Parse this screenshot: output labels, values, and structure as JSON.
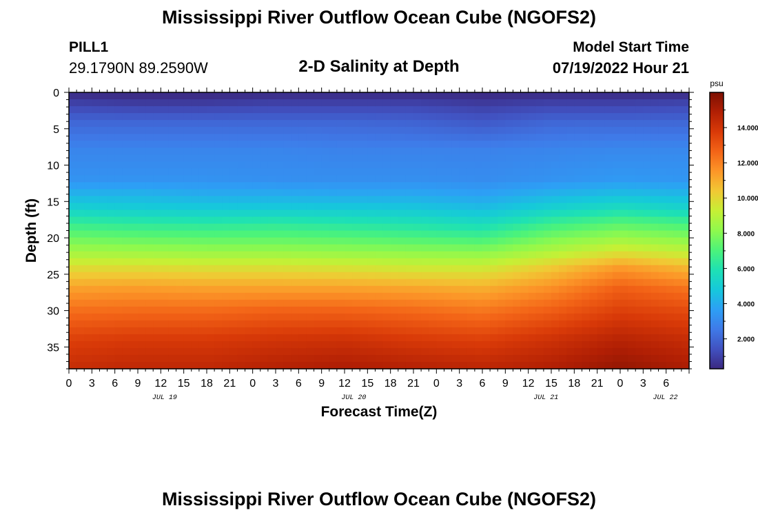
{
  "page": {
    "title": "Mississippi River Outflow Ocean Cube (NGOFS2)",
    "title_repeat": "Mississippi River Outflow Ocean Cube (NGOFS2)",
    "station": "PILL1",
    "coords": "29.1790N  89.2590W",
    "subtitle": "2-D Salinity at Depth",
    "model_start_label": "Model Start Time",
    "model_start_value": "07/19/2022 Hour 21"
  },
  "chart_data": {
    "type": "heatmap",
    "title": "2-D Salinity at Depth",
    "xlabel": "Forecast Time(Z)",
    "ylabel": "Depth (ft)",
    "units": "psu",
    "hours_total": 81,
    "x_tick_labels": [
      "0",
      "3",
      "6",
      "9",
      "12",
      "15",
      "18",
      "21",
      "0",
      "3",
      "6",
      "9",
      "12",
      "15",
      "18",
      "21",
      "0",
      "3",
      "6",
      "9",
      "12",
      "15",
      "18",
      "21",
      "0",
      "3",
      "6"
    ],
    "day_labels": [
      {
        "label": "JUL 19",
        "hour": 12.5
      },
      {
        "label": "JUL 20",
        "hour": 37.2
      },
      {
        "label": "JUL 21",
        "hour": 62.3
      },
      {
        "label": "JUL 22",
        "hour": 77.9
      }
    ],
    "y_ticks": [
      0,
      5,
      10,
      15,
      20,
      25,
      30,
      35
    ],
    "ylim": [
      0,
      38
    ],
    "colorbar": {
      "min": 0.3,
      "max": 16,
      "ticks": [
        "2.000",
        "4.000",
        "6.000",
        "8.000",
        "10.000",
        "12.000",
        "14.000"
      ],
      "tick_values": [
        2,
        4,
        6,
        8,
        10,
        12,
        14
      ],
      "colors": [
        "#3b2880",
        "#4151c0",
        "#3f7ae8",
        "#2d9ff5",
        "#16c8db",
        "#1ee1b4",
        "#4cf37a",
        "#8ff94d",
        "#c6f035",
        "#f1c834",
        "#fc9628",
        "#f36417",
        "#d93a08",
        "#b11f04",
        "#7d1002"
      ]
    },
    "profile_time_hours": [
      0,
      9,
      18,
      27,
      36,
      45,
      54,
      63,
      72,
      81
    ],
    "profile_depth_ft": [
      0,
      1,
      2,
      4,
      8,
      12,
      14,
      16,
      18,
      20,
      22,
      24,
      27,
      30,
      34,
      38
    ],
    "salinity_profiles": [
      [
        0.3,
        0.8,
        1.2,
        2.0,
        2.9,
        3.3,
        4.2,
        5.2,
        6.5,
        7.6,
        8.6,
        9.8,
        11.3,
        12.4,
        13.6,
        14.3
      ],
      [
        0.3,
        0.6,
        1.1,
        2.0,
        2.9,
        3.3,
        4.2,
        5.0,
        6.3,
        7.4,
        8.5,
        9.8,
        11.4,
        12.5,
        13.8,
        14.5
      ],
      [
        0.3,
        0.6,
        1.1,
        2.0,
        2.9,
        3.3,
        4.0,
        4.9,
        6.2,
        7.3,
        8.4,
        9.7,
        11.3,
        12.5,
        13.8,
        14.5
      ],
      [
        0.3,
        0.8,
        1.2,
        2.0,
        2.9,
        3.2,
        4.0,
        4.9,
        6.3,
        7.3,
        8.4,
        9.7,
        11.3,
        12.7,
        14.0,
        14.8
      ],
      [
        0.3,
        0.8,
        1.2,
        2.0,
        2.8,
        3.2,
        3.9,
        4.9,
        6.1,
        7.2,
        8.3,
        9.6,
        11.3,
        12.7,
        14.1,
        15.0
      ],
      [
        0.3,
        0.8,
        1.2,
        1.9,
        2.8,
        3.2,
        3.9,
        4.8,
        5.9,
        7.0,
        8.2,
        9.4,
        11.2,
        12.5,
        13.8,
        14.8
      ],
      [
        0.3,
        0.6,
        1.0,
        1.6,
        2.8,
        3.1,
        3.7,
        4.5,
        5.6,
        6.8,
        8.1,
        9.4,
        11.0,
        12.2,
        13.6,
        14.6
      ],
      [
        0.3,
        0.8,
        1.2,
        2.0,
        2.9,
        3.3,
        4.2,
        5.2,
        6.6,
        7.8,
        8.9,
        10.3,
        11.7,
        12.8,
        14.1,
        14.9
      ],
      [
        0.3,
        0.8,
        1.2,
        2.0,
        3.0,
        3.5,
        4.5,
        5.7,
        7.2,
        8.4,
        9.7,
        11.4,
        12.8,
        13.6,
        14.7,
        15.5
      ],
      [
        0.3,
        0.9,
        1.3,
        2.0,
        3.0,
        3.4,
        4.3,
        5.3,
        6.8,
        8.0,
        9.2,
        10.7,
        12.3,
        13.3,
        14.3,
        15.0
      ]
    ]
  }
}
